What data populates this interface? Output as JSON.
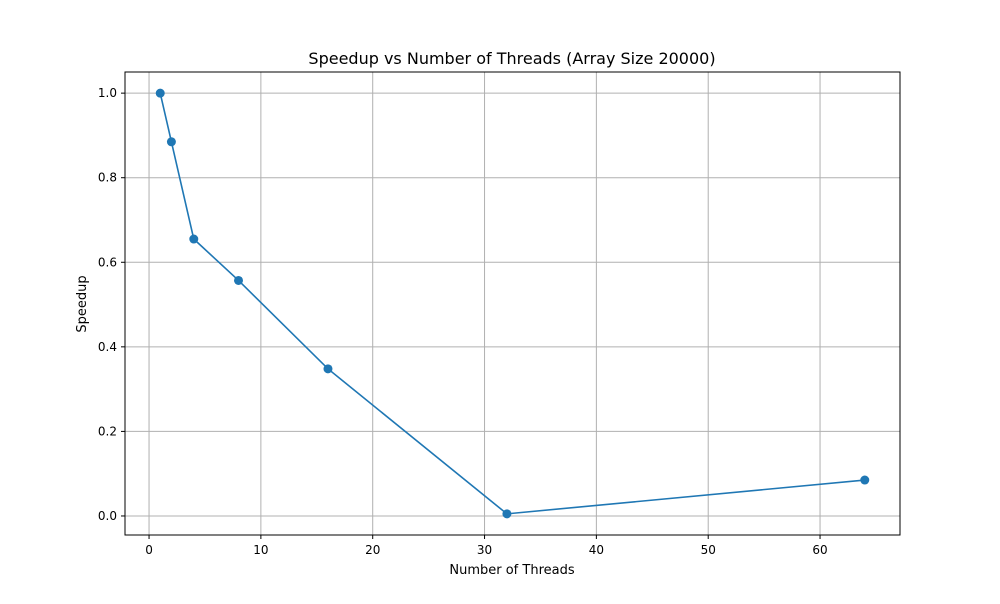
{
  "chart_data": {
    "type": "line",
    "title": "Speedup vs Number of Threads (Array Size 20000)",
    "xlabel": "Number of Threads",
    "ylabel": "Speedup",
    "xlim": [
      -2.15,
      67.15
    ],
    "ylim": [
      -0.045,
      1.05
    ],
    "xticks": [
      0,
      10,
      20,
      30,
      40,
      50,
      60
    ],
    "xtick_labels": [
      "0",
      "10",
      "20",
      "30",
      "40",
      "50",
      "60"
    ],
    "yticks": [
      0.0,
      0.2,
      0.4,
      0.6,
      0.8,
      1.0
    ],
    "ytick_labels": [
      "0.0",
      "0.2",
      "0.4",
      "0.6",
      "0.8",
      "1.0"
    ],
    "grid": true,
    "legend": "none",
    "series": [
      {
        "color": "#1f77b4",
        "marker": "circle",
        "x": [
          1,
          2,
          4,
          8,
          16,
          32,
          64
        ],
        "y": [
          1.0,
          0.885,
          0.655,
          0.557,
          0.348,
          0.005,
          0.085
        ]
      }
    ]
  }
}
